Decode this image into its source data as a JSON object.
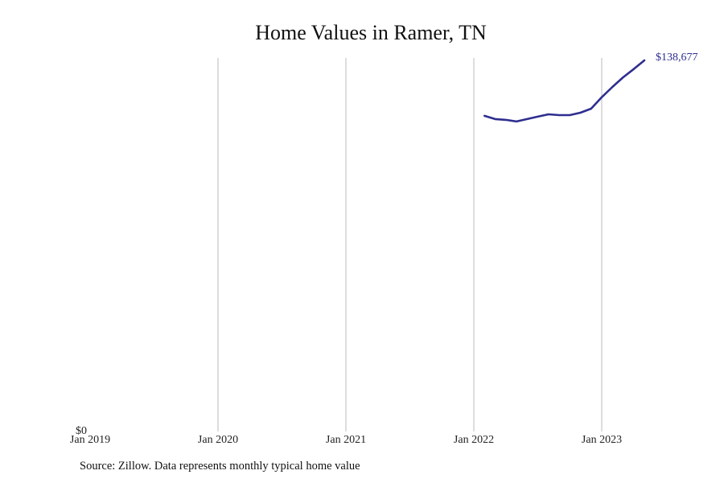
{
  "title": "Home Values in Ramer, TN",
  "source": "Source: Zillow. Data represents monthly typical home value",
  "colors": {
    "line": "#2e2e8f",
    "grid": "#bbbbbb",
    "end_label": "#2e2e8f"
  },
  "chart_data": {
    "type": "line",
    "title": "Home Values in Ramer, TN",
    "xlabel": "",
    "ylabel": "",
    "ylim": [
      0,
      138677
    ],
    "y_ticks": [
      "$0"
    ],
    "x_ticks": [
      "Jan 2019",
      "Jan 2020",
      "Jan 2021",
      "Jan 2022",
      "Jan 2023"
    ],
    "grid": {
      "vertical": true,
      "horizontal": false
    },
    "legend": null,
    "end_label": "$138,677",
    "series": [
      {
        "name": "Typical home value",
        "x": [
          "2022-02",
          "2022-03",
          "2022-04",
          "2022-05",
          "2022-06",
          "2022-07",
          "2022-08",
          "2022-09",
          "2022-10",
          "2022-11",
          "2022-12",
          "2023-01",
          "2023-02",
          "2023-03",
          "2023-04",
          "2023-05"
        ],
        "values": [
          117800,
          116600,
          116300,
          115700,
          116600,
          117500,
          118400,
          118100,
          118100,
          119000,
          120500,
          124800,
          128700,
          132300,
          135400,
          138677
        ]
      }
    ]
  }
}
